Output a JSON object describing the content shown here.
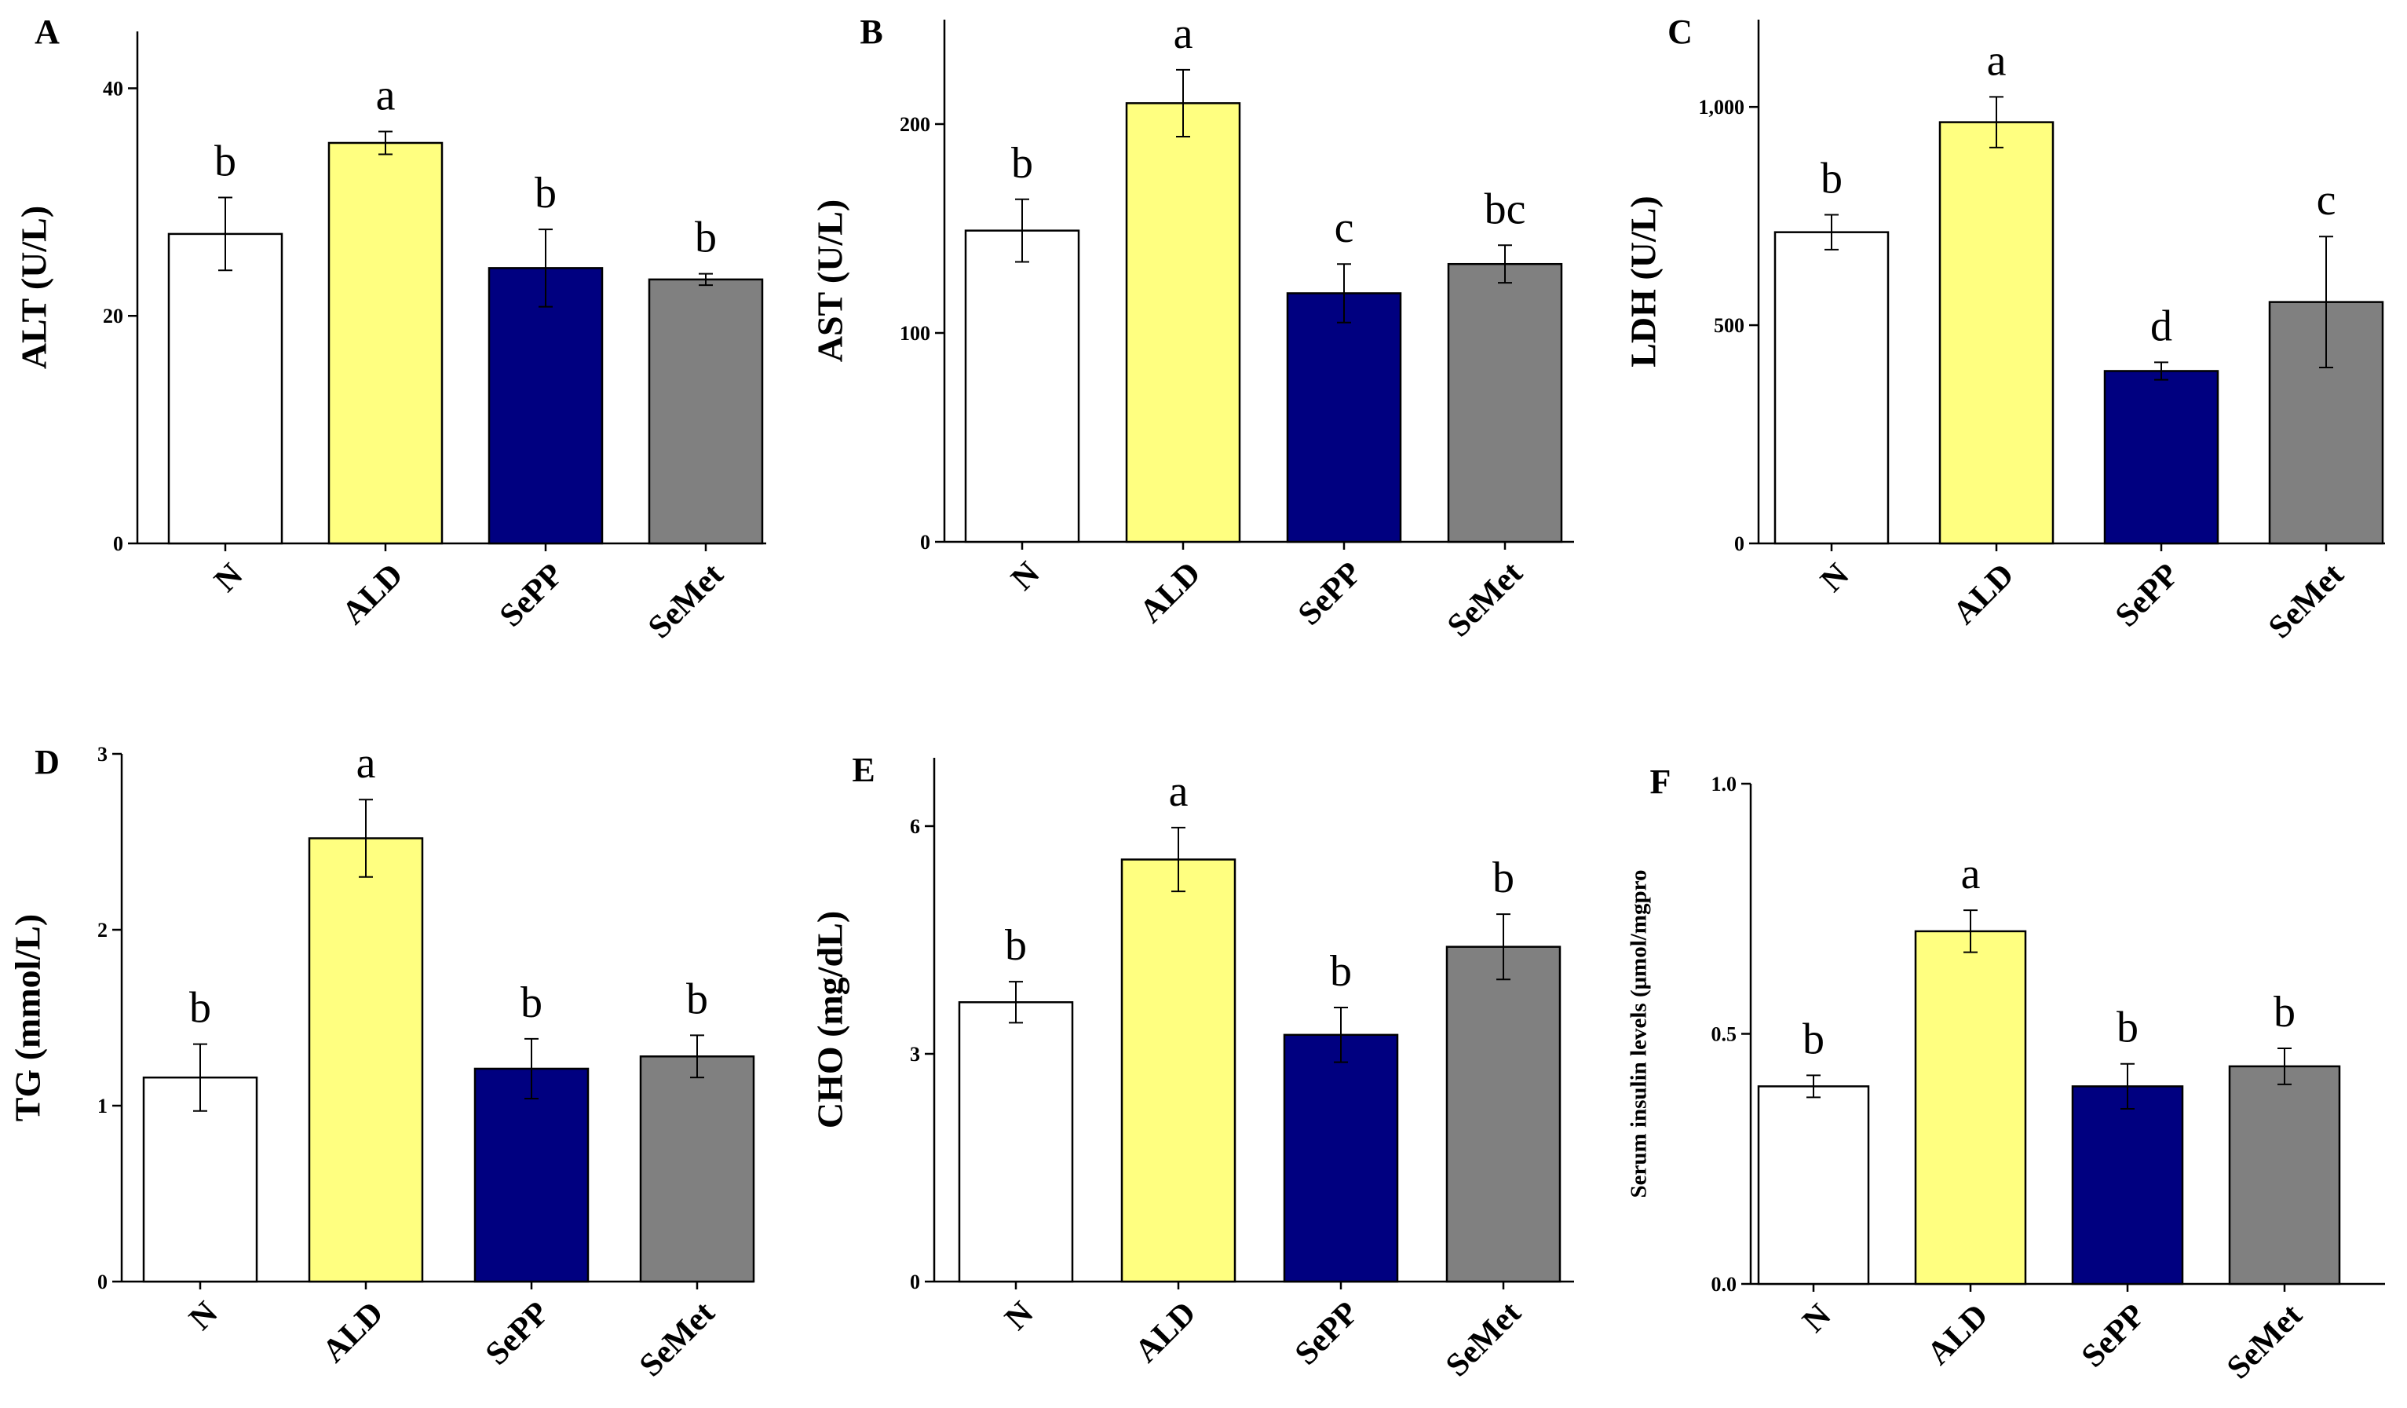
{
  "chart_data": [
    {
      "type": "bar",
      "panel": "A",
      "ylabel": "ALT (U/L)",
      "categories": [
        "N",
        "ALD",
        "SePP",
        "SeMet"
      ],
      "values": [
        27.2,
        35.2,
        24.2,
        23.2
      ],
      "errors": [
        3.2,
        1.0,
        3.4,
        0.5
      ],
      "letters": [
        "b",
        "a",
        "b",
        "b"
      ],
      "ylim": [
        0,
        45
      ],
      "yticks": [
        0,
        20,
        40
      ],
      "ytick_labels": [
        "0",
        "20",
        "40"
      ]
    },
    {
      "type": "bar",
      "panel": "B",
      "ylabel": "AST (U/L)",
      "categories": [
        "N",
        "ALD",
        "SePP",
        "SeMet"
      ],
      "values": [
        149,
        210,
        119,
        133
      ],
      "errors": [
        15,
        16,
        14,
        9
      ],
      "letters": [
        "b",
        "a",
        "c",
        "bc"
      ],
      "ylim": [
        0,
        250
      ],
      "yticks": [
        0,
        100,
        200
      ],
      "ytick_labels": [
        "0",
        "100",
        "200"
      ]
    },
    {
      "type": "bar",
      "panel": "C",
      "ylabel": "LDH (U/L)",
      "categories": [
        "N",
        "ALD",
        "SePP",
        "SeMet"
      ],
      "values": [
        713,
        965,
        395,
        553
      ],
      "errors": [
        40,
        58,
        20,
        150
      ],
      "letters": [
        "b",
        "a",
        "d",
        "c"
      ],
      "ylim": [
        0,
        1200
      ],
      "yticks": [
        0,
        500,
        1000
      ],
      "ytick_labels": [
        "0",
        "500",
        "1,000"
      ]
    },
    {
      "type": "bar",
      "panel": "D",
      "ylabel": "TG (mmol/L)",
      "categories": [
        "N",
        "ALD",
        "SePP",
        "SeMet"
      ],
      "values": [
        1.16,
        2.52,
        1.21,
        1.28
      ],
      "errors": [
        0.19,
        0.22,
        0.17,
        0.12
      ],
      "letters": [
        "b",
        "a",
        "b",
        "b"
      ],
      "ylim": [
        0,
        3
      ],
      "yticks": [
        0,
        1,
        2,
        3
      ],
      "ytick_labels": [
        "0",
        "1",
        "2",
        "3"
      ]
    },
    {
      "type": "bar",
      "panel": "E",
      "ylabel": "CHO (mg/dL)",
      "categories": [
        "N",
        "ALD",
        "SePP",
        "SeMet"
      ],
      "values": [
        3.68,
        5.56,
        3.25,
        4.41
      ],
      "errors": [
        0.27,
        0.42,
        0.36,
        0.43
      ],
      "letters": [
        "b",
        "a",
        "b",
        "b"
      ],
      "ylim": [
        0,
        6.9
      ],
      "yticks": [
        0,
        3,
        6
      ],
      "ytick_labels": [
        "0",
        "3",
        "6"
      ]
    },
    {
      "type": "bar",
      "panel": "F",
      "ylabel": "Serum insulin levels (μmol/mgpro",
      "categories": [
        "N",
        "ALD",
        "SePP",
        "SeMet"
      ],
      "values": [
        0.395,
        0.705,
        0.395,
        0.435
      ],
      "errors": [
        0.022,
        0.042,
        0.045,
        0.036
      ],
      "letters": [
        "b",
        "a",
        "b",
        "b"
      ],
      "ylim": [
        0,
        1.0
      ],
      "yticks": [
        0,
        0.5,
        1.0
      ],
      "ytick_labels": [
        "0.0",
        "0.5",
        "1.0"
      ]
    }
  ],
  "colors": {
    "N": "#ffffff",
    "ALD": "#ffff80",
    "SePP": "#000080",
    "SeMet": "#808080",
    "axis": "#000000"
  }
}
